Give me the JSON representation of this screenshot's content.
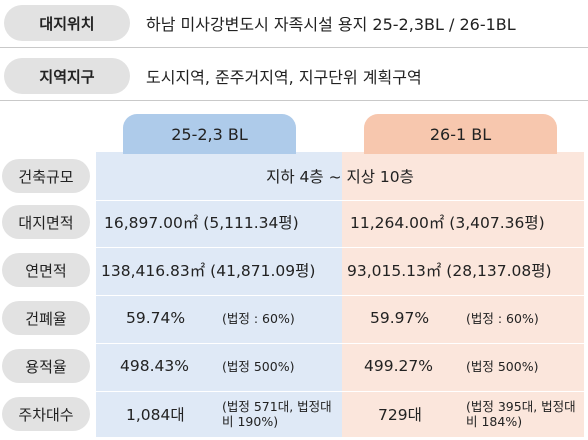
{
  "header": {
    "site_location": {
      "label": "대지위치",
      "value": "하남 미사강변도시 자족시설 용지 25-2,3BL / 26-1BL"
    },
    "zoning": {
      "label": "지역지구",
      "value": "도시지역, 준주거지역, 지구단위 계획구역"
    }
  },
  "table": {
    "columns": [
      "25-2,3 BL",
      "26-1 BL"
    ],
    "floors": {
      "label": "건축규모",
      "value": "지하 4층 ~ 지상 10층"
    },
    "site_area": {
      "label": "대지면적",
      "a": "16,897.00㎡ (5,111.34평)",
      "b": "11,264.00㎡ (3,407.36평)"
    },
    "gross_area": {
      "label": "연면적",
      "a": "138,416.83㎡ (41,871.09평)",
      "b": "93,015.13㎡ (28,137.08평)"
    },
    "coverage": {
      "label": "건폐율",
      "a_value": "59.74%",
      "a_note": "(법정 : 60%)",
      "b_value": "59.97%",
      "b_note": "(법정 : 60%)"
    },
    "far": {
      "label": "용적율",
      "a_value": "498.43%",
      "a_note": "(법정 500%)",
      "b_value": "499.27%",
      "b_note": "(법정 500%)"
    },
    "parking": {
      "label": "주차대수",
      "a_value": "1,084대",
      "a_note": "(법정 571대, 법정대비 190%)",
      "b_value": "729대",
      "b_note": "(법정 395대, 법정대비 184%)"
    }
  }
}
